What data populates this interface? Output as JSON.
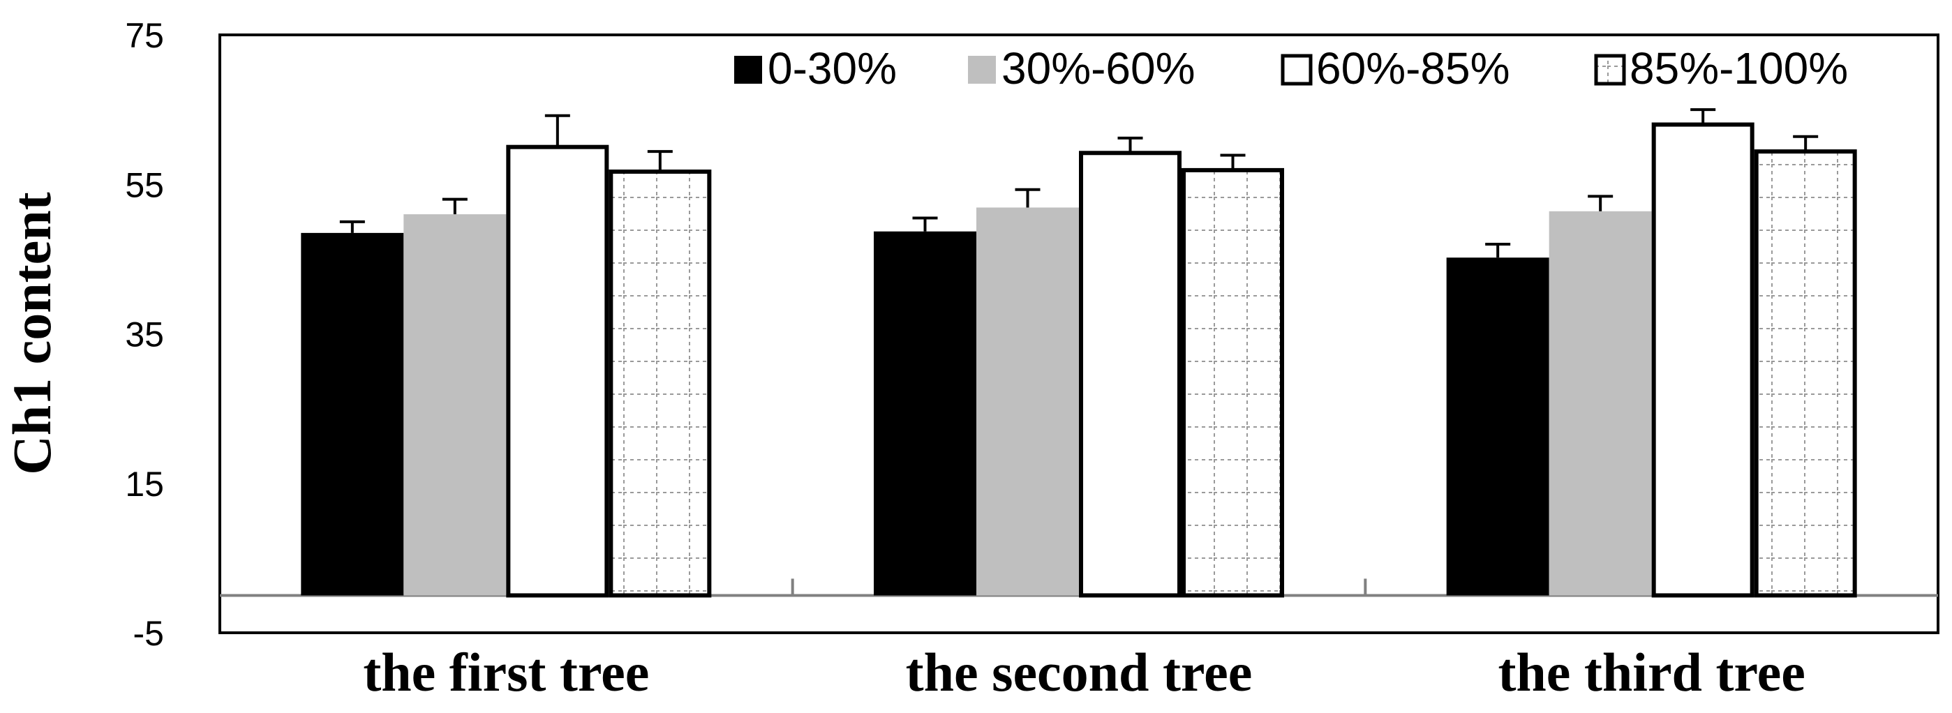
{
  "chart_data": {
    "type": "bar",
    "title": "",
    "xlabel": "",
    "ylabel": "Ch1 content",
    "ylim": [
      -5,
      75
    ],
    "yticks": [
      -5,
      15,
      35,
      55,
      75
    ],
    "ytick_labels": [
      "-5",
      "15",
      "35",
      "55",
      "75"
    ],
    "grid": false,
    "legend_position": "top-right",
    "categories": [
      "the first tree",
      "the second tree",
      "the third tree"
    ],
    "series": [
      {
        "name": "0-30%",
        "values": [
          48.5,
          48.7,
          45.2
        ],
        "errors": [
          1.5,
          1.8,
          1.8
        ],
        "fill": "#000000",
        "pattern": "solid"
      },
      {
        "name": "30%-60%",
        "values": [
          51.0,
          51.9,
          51.4
        ],
        "errors": [
          2.0,
          2.4,
          2.0
        ],
        "fill": "#bfbfbf",
        "pattern": "solid"
      },
      {
        "name": "60%-85%",
        "values": [
          60.0,
          59.2,
          63.0
        ],
        "errors": [
          4.2,
          2.0,
          2.0
        ],
        "fill": "#ffffff",
        "pattern": "solid"
      },
      {
        "name": "85%-100%",
        "values": [
          56.7,
          56.9,
          59.4
        ],
        "errors": [
          2.7,
          2.0,
          2.0
        ],
        "fill": "#ffffff",
        "pattern": "dotted-grid"
      }
    ]
  }
}
